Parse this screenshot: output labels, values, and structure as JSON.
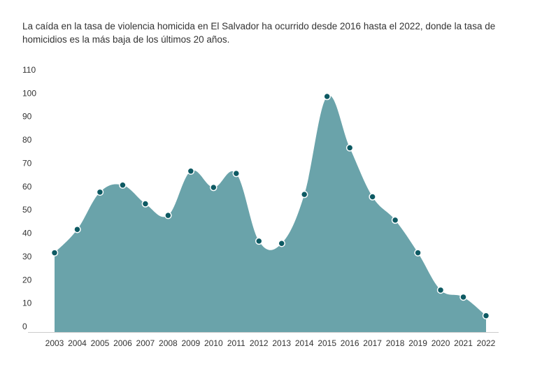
{
  "chart_data": {
    "type": "area",
    "title": "",
    "subtitle": "La caída en la tasa de violencia homicida en El Salvador ha ocurrido desde 2016 hasta el 2022, donde la tasa de homicidios es la más baja de los últimos 20 años.",
    "xlabel": "",
    "ylabel": "",
    "x": [
      "2003",
      "2004",
      "2005",
      "2006",
      "2007",
      "2008",
      "2009",
      "2010",
      "2011",
      "2012",
      "2013",
      "2014",
      "2015",
      "2016",
      "2017",
      "2018",
      "2019",
      "2020",
      "2021",
      "2022"
    ],
    "series": [
      {
        "values": [
          34,
          44,
          60,
          63,
          55,
          50,
          69,
          62,
          68,
          39,
          38,
          59,
          101,
          79,
          58,
          48,
          34,
          18,
          15,
          7
        ]
      }
    ],
    "yticks": [
      "0",
      "10",
      "20",
      "30",
      "40",
      "50",
      "60",
      "70",
      "80",
      "90",
      "100",
      "110"
    ],
    "ylim": [
      0,
      110
    ],
    "grid": false,
    "colors": {
      "fill": "#6aa3aa",
      "marker": "#0e5a63",
      "marker_stroke": "#ffffff"
    }
  }
}
